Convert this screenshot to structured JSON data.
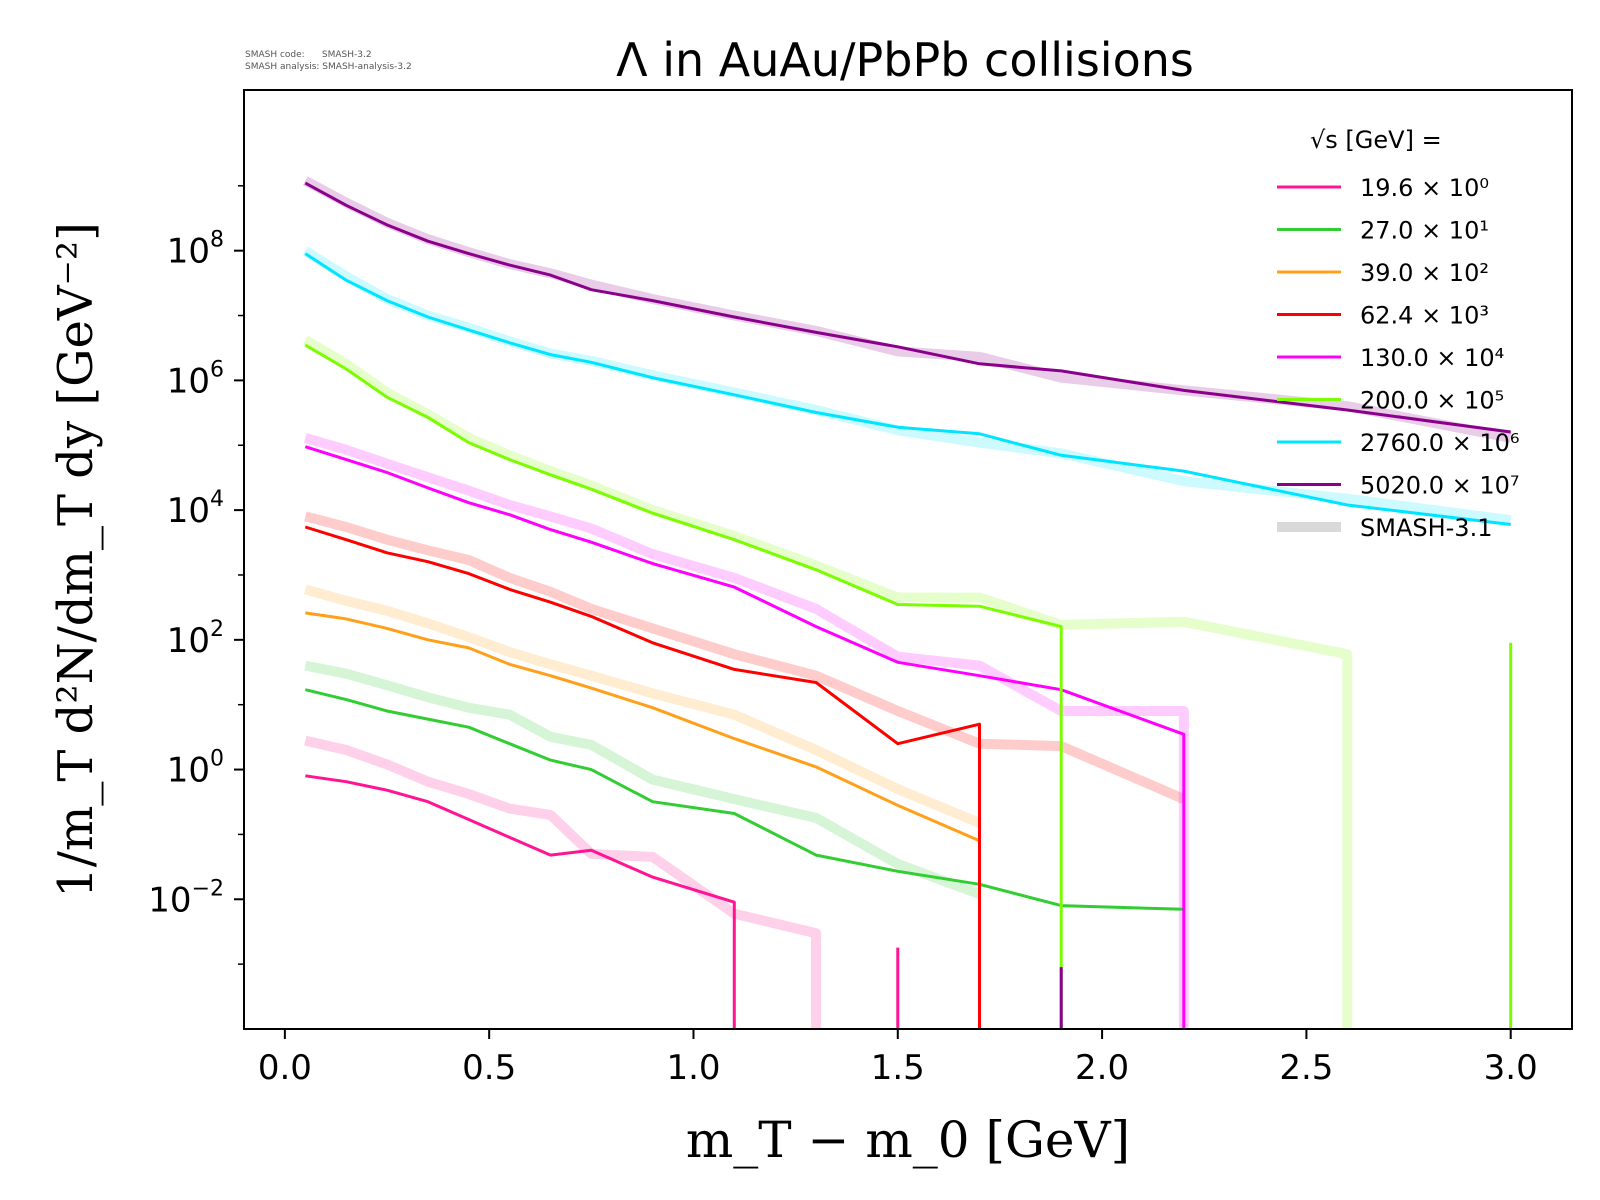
{
  "header": {
    "code_line": "SMASH code:      SMASH-3.2",
    "analysis_line": "SMASH analysis: SMASH-analysis-3.2"
  },
  "chart_data": {
    "type": "line",
    "title": "Λ in AuAu/PbPb collisions",
    "xlabel": "m_T − m_0 [GeV]",
    "ylabel": "1/m_T d²N/dm_T dy [GeV⁻²]",
    "xlim": [
      -0.1,
      3.15
    ],
    "ylim": [
      0.0001,
      30000000000
    ],
    "yscale": "log",
    "x_ticks": [
      "0.0",
      "0.5",
      "1.0",
      "1.5",
      "2.0",
      "2.5",
      "3.0"
    ],
    "y_ticks": [
      {
        "base": "10",
        "exp": "−2",
        "value": 0.01
      },
      {
        "base": "10",
        "exp": "0",
        "value": 1
      },
      {
        "base": "10",
        "exp": "2",
        "value": 100
      },
      {
        "base": "10",
        "exp": "4",
        "value": 10000
      },
      {
        "base": "10",
        "exp": "6",
        "value": 1000000
      },
      {
        "base": "10",
        "exp": "8",
        "value": 100000000
      }
    ],
    "legend_position": "top-right",
    "legend_title": "√s [GeV] =",
    "reference_label": "SMASH-3.1",
    "reference_color": "#d9d9d9",
    "series": [
      {
        "name": "19.6 × 10⁰",
        "color": "#ff1493",
        "x": [
          0.05,
          0.15,
          0.25,
          0.35,
          0.45,
          0.55,
          0.65,
          0.75,
          0.9,
          1.1,
          1.1
        ],
        "y": [
          0.8,
          0.65,
          0.48,
          0.32,
          0.17,
          0.09,
          0.048,
          0.057,
          0.022,
          0.009,
          0.0001
        ],
        "ref_x": [
          0.05,
          0.15,
          0.25,
          0.35,
          0.45,
          0.55,
          0.65,
          0.75,
          0.9,
          1.1,
          1.3,
          1.3
        ],
        "ref_y": [
          2.8,
          2.0,
          1.2,
          0.65,
          0.42,
          0.25,
          0.2,
          0.05,
          0.045,
          0.006,
          0.003,
          0.0001
        ],
        "spikes": [
          {
            "x": 1.5,
            "y": 0.0018
          }
        ]
      },
      {
        "name": "27.0 × 10¹",
        "color": "#32cd32",
        "x": [
          0.05,
          0.15,
          0.25,
          0.35,
          0.45,
          0.55,
          0.65,
          0.75,
          0.9,
          1.1,
          1.3,
          1.5,
          1.7,
          1.9,
          2.2
        ],
        "y": [
          17,
          12,
          8,
          6,
          4.5,
          2.5,
          1.4,
          1.0,
          0.32,
          0.21,
          0.048,
          0.027,
          0.017,
          0.008,
          0.007
        ],
        "ref_x": [
          0.05,
          0.15,
          0.25,
          0.35,
          0.45,
          0.55,
          0.65,
          0.75,
          0.9,
          1.1,
          1.3,
          1.5,
          1.7
        ],
        "ref_y": [
          40,
          30,
          20,
          13,
          9,
          7,
          3.2,
          2.4,
          0.7,
          0.35,
          0.18,
          0.035,
          0.012
        ]
      },
      {
        "name": "39.0 × 10²",
        "color": "#ff9f1a",
        "x": [
          0.05,
          0.15,
          0.25,
          0.35,
          0.45,
          0.55,
          0.65,
          0.75,
          0.9,
          1.1,
          1.3,
          1.5,
          1.7
        ],
        "y": [
          260,
          210,
          150,
          100,
          75,
          42,
          28,
          18,
          9,
          3,
          1.1,
          0.28,
          0.08
        ],
        "ref_x": [
          0.05,
          0.15,
          0.25,
          0.35,
          0.45,
          0.55,
          0.65,
          0.75,
          0.9,
          1.1,
          1.3,
          1.5,
          1.7
        ],
        "ref_y": [
          600,
          400,
          280,
          180,
          110,
          65,
          42,
          28,
          15,
          7,
          2,
          0.5,
          0.15
        ]
      },
      {
        "name": "62.4 × 10³",
        "color": "#ff0000",
        "x": [
          0.05,
          0.15,
          0.25,
          0.35,
          0.45,
          0.55,
          0.65,
          0.75,
          0.9,
          1.1,
          1.3,
          1.5,
          1.7,
          1.7
        ],
        "y": [
          5500,
          3500,
          2200,
          1600,
          1050,
          600,
          380,
          230,
          90,
          35,
          22,
          2.5,
          5.0,
          0.0001
        ],
        "ref_x": [
          0.05,
          0.15,
          0.25,
          0.35,
          0.45,
          0.55,
          0.65,
          0.75,
          0.9,
          1.1,
          1.3,
          1.5,
          1.7,
          1.9,
          2.2
        ],
        "ref_y": [
          8000,
          5500,
          3500,
          2400,
          1700,
          900,
          550,
          300,
          150,
          60,
          28,
          8,
          2.5,
          2.3,
          0.35
        ]
      },
      {
        "name": "130.0 × 10⁴",
        "color": "#ff00ff",
        "x": [
          0.05,
          0.15,
          0.25,
          0.35,
          0.45,
          0.55,
          0.65,
          0.75,
          0.9,
          1.1,
          1.3,
          1.5,
          1.7,
          1.9,
          2.2,
          2.2
        ],
        "y": [
          95000,
          60000,
          38000,
          22000,
          13000,
          8500,
          5000,
          3200,
          1500,
          650,
          160,
          45,
          28,
          17,
          3.5,
          0.0001
        ],
        "ref_x": [
          0.05,
          0.15,
          0.25,
          0.35,
          0.45,
          0.55,
          0.65,
          0.75,
          0.9,
          1.1,
          1.3,
          1.5,
          1.7,
          1.9,
          2.2,
          2.2
        ],
        "ref_y": [
          130000,
          85000,
          52000,
          32000,
          20000,
          12000,
          8000,
          5200,
          2100,
          900,
          300,
          55,
          40,
          8,
          8,
          0.0001
        ]
      },
      {
        "name": "200.0 × 10⁵",
        "color": "#7cfc00",
        "x": [
          0.05,
          0.15,
          0.25,
          0.35,
          0.45,
          0.55,
          0.65,
          0.75,
          0.9,
          1.1,
          1.3,
          1.5,
          1.7,
          1.9,
          1.9
        ],
        "y": [
          3500000,
          1500000,
          550000,
          270000,
          110000,
          60000,
          35000,
          21000,
          9000,
          3500,
          1200,
          350,
          330,
          160,
          0.0001
        ],
        "ref_x": [
          0.05,
          0.15,
          0.25,
          0.35,
          0.45,
          0.55,
          0.65,
          0.75,
          0.9,
          1.1,
          1.3,
          1.5,
          1.7,
          1.9,
          2.2,
          2.6,
          2.6
        ],
        "ref_y": [
          4200000,
          1800000,
          650000,
          300000,
          130000,
          70000,
          40000,
          24000,
          10000,
          4000,
          1400,
          450,
          450,
          170,
          190,
          60,
          0.0001
        ],
        "spikes": [
          {
            "x": 3.0,
            "y": 90
          }
        ]
      },
      {
        "name": "2760.0 × 10⁶",
        "color": "#00e5ff",
        "x": [
          0.05,
          0.15,
          0.25,
          0.35,
          0.45,
          0.55,
          0.65,
          0.75,
          0.9,
          1.1,
          1.3,
          1.5,
          1.7,
          1.9,
          2.2,
          2.6,
          3.0
        ],
        "y": [
          90000000,
          35000000,
          17000000,
          9500000,
          6000000,
          3800000,
          2500000,
          1900000,
          1100000,
          600000,
          320000,
          190000,
          150000,
          70000,
          40000,
          12000,
          6000
        ],
        "ref_x": [
          0.05,
          0.15,
          0.25,
          0.35,
          0.45,
          0.55,
          0.65,
          0.75,
          0.9,
          1.1,
          1.3,
          1.5,
          1.7,
          1.9,
          2.2,
          2.6,
          3.0
        ],
        "ref_y": [
          100000000,
          40000000,
          18000000,
          10000000,
          6500000,
          4000000,
          2600000,
          2000000,
          1200000,
          650000,
          350000,
          170000,
          110000,
          75000,
          28000,
          15000,
          7000
        ]
      },
      {
        "name": "5020.0 × 10⁷",
        "color": "#8b008b",
        "x": [
          0.05,
          0.15,
          0.25,
          0.35,
          0.45,
          0.55,
          0.65,
          0.75,
          0.9,
          1.1,
          1.3,
          1.5,
          1.7,
          1.9,
          2.2,
          2.6,
          3.0
        ],
        "y": [
          1100000000,
          500000000,
          250000000,
          140000000,
          90000000,
          60000000,
          42000000,
          25000000,
          17000000,
          9500000,
          5500000,
          3300000,
          1800000,
          1400000,
          700000,
          350000,
          160000
        ],
        "ref_x": [
          0.05,
          0.15,
          0.25,
          0.35,
          0.45,
          0.55,
          0.65,
          0.75,
          0.9,
          1.1,
          1.3,
          1.5,
          1.7,
          1.9,
          2.2,
          2.6,
          3.0
        ],
        "ref_y": [
          1200000000,
          550000000,
          270000000,
          150000000,
          95000000,
          62000000,
          45000000,
          30000000,
          18000000,
          10000000,
          5800000,
          2800000,
          2300000,
          1100000,
          700000,
          400000,
          130000
        ],
        "spikes": [
          {
            "x": 1.9,
            "y": 0.0009
          }
        ]
      }
    ]
  }
}
